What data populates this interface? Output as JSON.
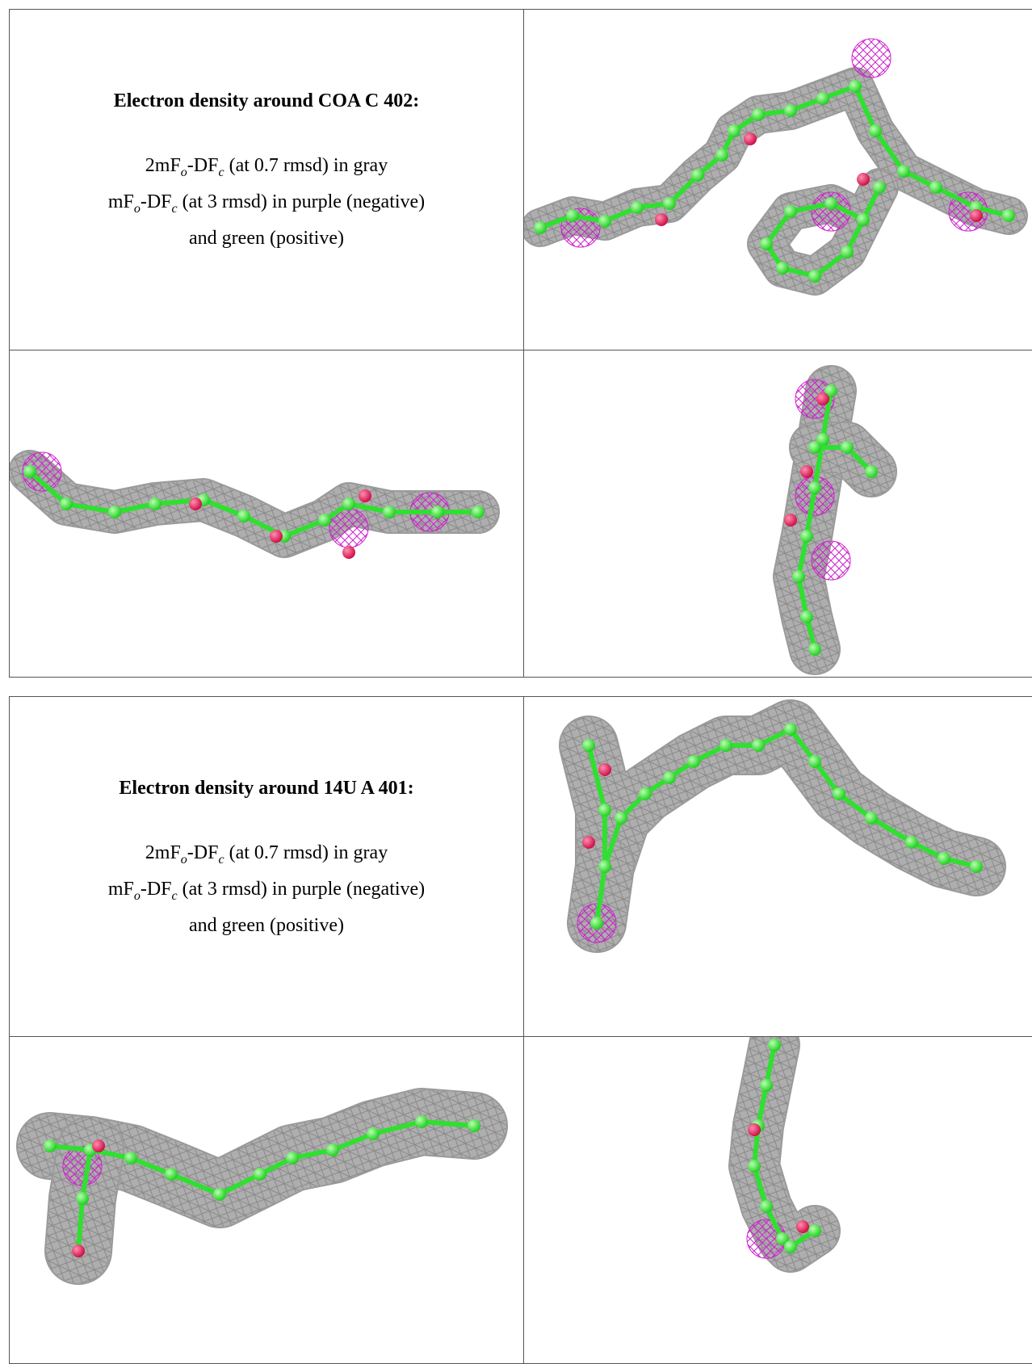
{
  "tables": [
    {
      "title": "Electron density around COA C 402:",
      "lines": [
        [
          "2mF",
          "o",
          "-DF",
          "c",
          " (at 0.7 rmsd) in gray"
        ],
        [
          "mF",
          "o",
          "-DF",
          "c",
          " (at 3 rmsd) in purple (negative)"
        ],
        [
          "and green (positive)"
        ]
      ]
    },
    {
      "title": "Electron density around 14U A 401:",
      "lines": [
        [
          "2mF",
          "o",
          "-DF",
          "c",
          " (at 0.7 rmsd) in gray"
        ],
        [
          "mF",
          "o",
          "-DF",
          "c",
          " (at 3 rmsd) in purple (negative)"
        ],
        [
          "and green (positive)"
        ]
      ]
    }
  ]
}
